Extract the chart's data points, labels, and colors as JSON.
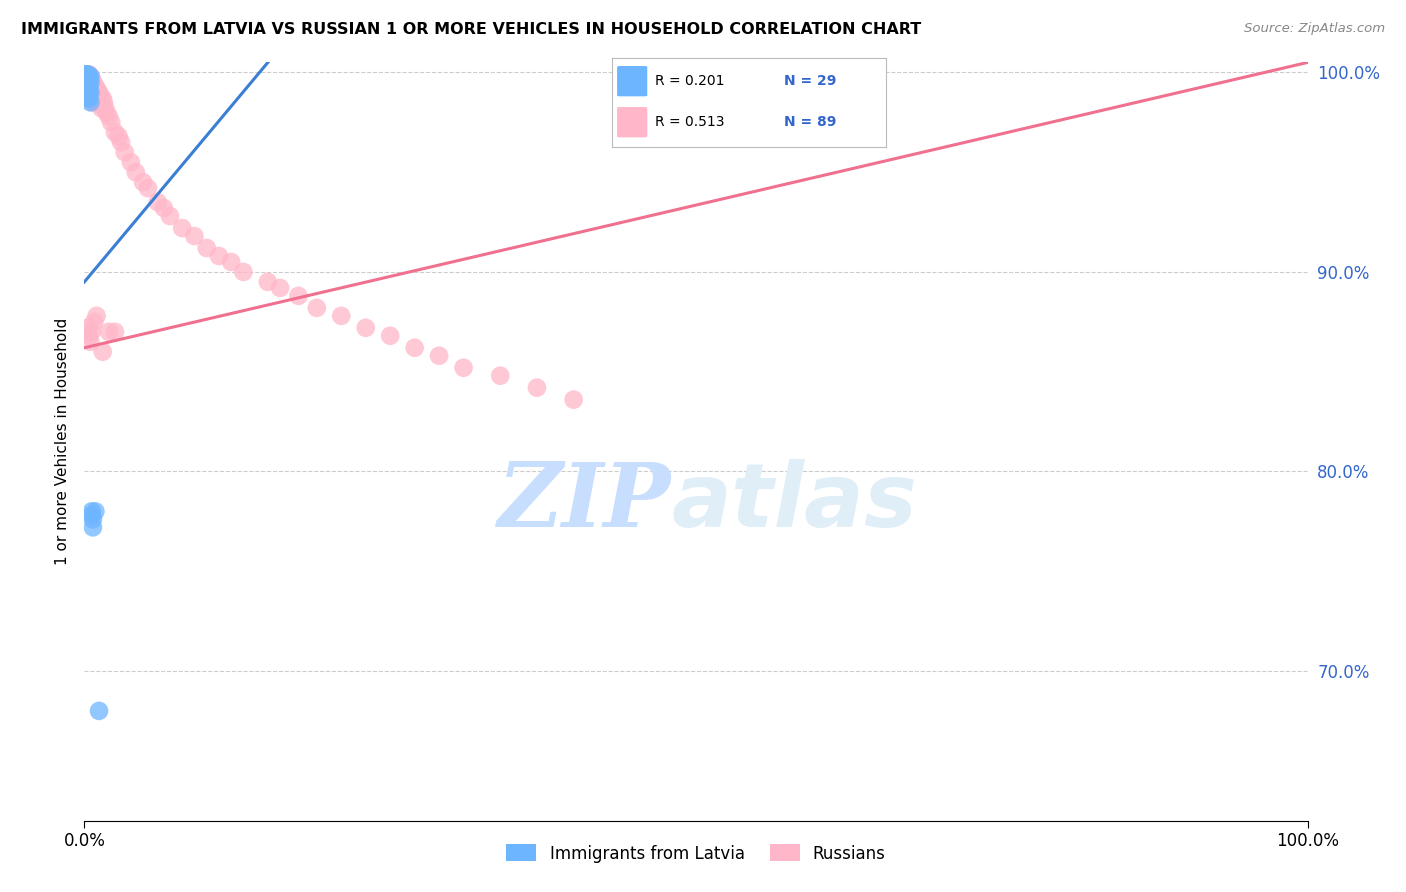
{
  "title": "IMMIGRANTS FROM LATVIA VS RUSSIAN 1 OR MORE VEHICLES IN HOUSEHOLD CORRELATION CHART",
  "source": "Source: ZipAtlas.com",
  "ylabel": "1 or more Vehicles in Household",
  "xlim": [
    0.0,
    1.0
  ],
  "ylim": [
    0.625,
    1.005
  ],
  "ytick_labels": [
    "70.0%",
    "80.0%",
    "90.0%",
    "100.0%"
  ],
  "ytick_values": [
    0.7,
    0.8,
    0.9,
    1.0
  ],
  "legend_blue_r": "R = 0.201",
  "legend_blue_n": "N = 29",
  "legend_pink_r": "R = 0.513",
  "legend_pink_n": "N = 89",
  "legend_label_blue": "Immigrants from Latvia",
  "legend_label_pink": "Russians",
  "blue_color": "#6EB5FF",
  "pink_color": "#FFB6C8",
  "blue_line_color": "#3A7FD5",
  "pink_line_color": "#F07090",
  "watermark_zip": "ZIP",
  "watermark_atlas": "atlas",
  "watermark_color": "#C8DEFF",
  "blue_line_x0": 0.0,
  "blue_line_y0": 0.895,
  "blue_line_x1": 0.15,
  "blue_line_y1": 1.005,
  "pink_line_x0": 0.0,
  "pink_line_y0": 0.862,
  "pink_line_x1": 1.0,
  "pink_line_y1": 1.005,
  "blue_x": [
    0.001,
    0.001,
    0.002,
    0.002,
    0.002,
    0.002,
    0.002,
    0.002,
    0.003,
    0.003,
    0.003,
    0.003,
    0.003,
    0.003,
    0.004,
    0.004,
    0.004,
    0.004,
    0.004,
    0.005,
    0.005,
    0.005,
    0.005,
    0.006,
    0.006,
    0.007,
    0.007,
    0.009,
    0.012
  ],
  "blue_y": [
    0.999,
    0.996,
    0.999,
    0.997,
    0.995,
    0.993,
    0.991,
    0.988,
    0.999,
    0.997,
    0.995,
    0.993,
    0.99,
    0.987,
    0.998,
    0.996,
    0.993,
    0.99,
    0.987,
    0.998,
    0.995,
    0.99,
    0.985,
    0.78,
    0.778,
    0.776,
    0.772,
    0.78,
    0.68
  ],
  "pink_x": [
    0.001,
    0.001,
    0.001,
    0.002,
    0.002,
    0.002,
    0.002,
    0.003,
    0.003,
    0.003,
    0.003,
    0.003,
    0.003,
    0.004,
    0.004,
    0.004,
    0.004,
    0.005,
    0.005,
    0.005,
    0.005,
    0.006,
    0.006,
    0.006,
    0.006,
    0.007,
    0.007,
    0.007,
    0.007,
    0.008,
    0.008,
    0.008,
    0.009,
    0.009,
    0.009,
    0.01,
    0.01,
    0.011,
    0.011,
    0.012,
    0.012,
    0.013,
    0.013,
    0.014,
    0.015,
    0.016,
    0.017,
    0.018,
    0.02,
    0.022,
    0.025,
    0.028,
    0.03,
    0.033,
    0.038,
    0.042,
    0.048,
    0.052,
    0.06,
    0.065,
    0.07,
    0.08,
    0.09,
    0.1,
    0.11,
    0.12,
    0.13,
    0.15,
    0.16,
    0.175,
    0.19,
    0.21,
    0.23,
    0.25,
    0.27,
    0.29,
    0.31,
    0.34,
    0.37,
    0.4,
    0.01,
    0.02,
    0.003,
    0.004,
    0.005,
    0.015,
    0.025,
    0.008,
    0.006
  ],
  "pink_y": [
    0.999,
    0.997,
    0.995,
    0.999,
    0.997,
    0.995,
    0.993,
    0.999,
    0.997,
    0.995,
    0.993,
    0.991,
    0.988,
    0.999,
    0.997,
    0.994,
    0.99,
    0.998,
    0.995,
    0.992,
    0.988,
    0.997,
    0.993,
    0.99,
    0.986,
    0.995,
    0.993,
    0.99,
    0.985,
    0.994,
    0.991,
    0.987,
    0.993,
    0.99,
    0.985,
    0.992,
    0.988,
    0.99,
    0.985,
    0.99,
    0.986,
    0.988,
    0.984,
    0.982,
    0.987,
    0.985,
    0.982,
    0.98,
    0.978,
    0.975,
    0.97,
    0.968,
    0.965,
    0.96,
    0.955,
    0.95,
    0.945,
    0.942,
    0.935,
    0.932,
    0.928,
    0.922,
    0.918,
    0.912,
    0.908,
    0.905,
    0.9,
    0.895,
    0.892,
    0.888,
    0.882,
    0.878,
    0.872,
    0.868,
    0.862,
    0.858,
    0.852,
    0.848,
    0.842,
    0.836,
    0.878,
    0.87,
    0.872,
    0.868,
    0.865,
    0.86,
    0.87,
    0.875,
    0.87
  ]
}
